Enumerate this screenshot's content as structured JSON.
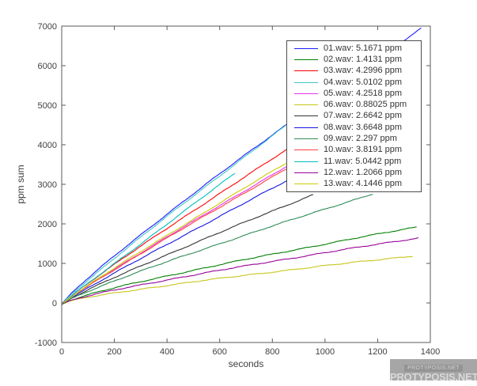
{
  "figure": {
    "background": "#ffffff",
    "axis_color": "#5a5a5a",
    "tick_label_color": "#404040"
  },
  "chart_data": {
    "type": "line",
    "title": "",
    "xlabel": "seconds",
    "ylabel": "ppm sum",
    "xlim": [
      0,
      1400
    ],
    "ylim": [
      -1000,
      7000
    ],
    "xticks": [
      0,
      200,
      400,
      600,
      800,
      1000,
      1200,
      1400
    ],
    "yticks": [
      -1000,
      0,
      1000,
      2000,
      3000,
      4000,
      5000,
      6000,
      7000
    ],
    "grid": false,
    "legend": {
      "position": "upper-right-inside",
      "border_color": "#4d4d4d",
      "text_color": "#333333"
    },
    "description": "Cumulative ppm sum over time for 13 wav recordings; each curve starts near 0 ppm (brief small dip) and rises nearly linearly to end_ppm_sum at duration_s. Legend value is the mean ppm rate per file.",
    "series": [
      {
        "label": "01.wav: 5.1671 ppm",
        "file": "01.wav",
        "rate_ppm_per_s": 5.1671,
        "color": "#1a1aff",
        "duration_s": 1365,
        "end_ppm_sum": 6950,
        "shape_exp": 0.92
      },
      {
        "label": "02.wav: 1.4131 ppm",
        "file": "02.wav",
        "rate_ppm_per_s": 1.4131,
        "color": "#007f00",
        "duration_s": 1348,
        "end_ppm_sum": 1920,
        "shape_exp": 0.85
      },
      {
        "label": "03.wav: 4.2996 ppm",
        "file": "03.wav",
        "rate_ppm_per_s": 4.2996,
        "color": "#ff0000",
        "duration_s": 858,
        "end_ppm_sum": 3890,
        "shape_exp": 0.95
      },
      {
        "label": "04.wav: 5.0102 ppm",
        "file": "04.wav",
        "rate_ppm_per_s": 5.0102,
        "color": "#3fc6c6",
        "duration_s": 855,
        "end_ppm_sum": 4500,
        "shape_exp": 0.95
      },
      {
        "label": "05.wav: 4.2518 ppm",
        "file": "05.wav",
        "rate_ppm_per_s": 4.2518,
        "color": "#e833e8",
        "duration_s": 858,
        "end_ppm_sum": 3470,
        "shape_exp": 0.96
      },
      {
        "label": "06.wav: 0.88025 ppm",
        "file": "06.wav",
        "rate_ppm_per_s": 0.88025,
        "color": "#c6c61a",
        "duration_s": 1333,
        "end_ppm_sum": 1190,
        "shape_exp": 0.82
      },
      {
        "label": "07.wav: 2.6642 ppm",
        "file": "07.wav",
        "rate_ppm_per_s": 2.6642,
        "color": "#333333",
        "duration_s": 955,
        "end_ppm_sum": 2740,
        "shape_exp": 0.93
      },
      {
        "label": "08.wav: 3.6648 ppm",
        "file": "08.wav",
        "rate_ppm_per_s": 3.6648,
        "color": "#1414e0",
        "duration_s": 855,
        "end_ppm_sum": 3090,
        "shape_exp": 0.97
      },
      {
        "label": "09.wav: 2.297 ppm",
        "file": "09.wav",
        "rate_ppm_per_s": 2.297,
        "color": "#2e8b57",
        "duration_s": 1182,
        "end_ppm_sum": 2760,
        "shape_exp": 0.9
      },
      {
        "label": "10.wav: 3.8191 ppm",
        "file": "10.wav",
        "rate_ppm_per_s": 3.8191,
        "color": "#ff4040",
        "duration_s": 858,
        "end_ppm_sum": 3410,
        "shape_exp": 0.96
      },
      {
        "label": "11.wav: 5.0442 ppm",
        "file": "11.wav",
        "rate_ppm_per_s": 5.0442,
        "color": "#00bfbf",
        "duration_s": 658,
        "end_ppm_sum": 3280,
        "shape_exp": 1.0
      },
      {
        "label": "12.wav: 1.2066 ppm",
        "file": "12.wav",
        "rate_ppm_per_s": 1.2066,
        "color": "#990099",
        "duration_s": 1355,
        "end_ppm_sum": 1645,
        "shape_exp": 0.85
      },
      {
        "label": "13.wav: 4.1446 ppm",
        "file": "13.wav",
        "rate_ppm_per_s": 4.1446,
        "color": "#cccc00",
        "duration_s": 858,
        "end_ppm_sum": 3560,
        "shape_exp": 0.96
      }
    ]
  },
  "watermark": {
    "small_text": "PROTYPOSIS.NET",
    "large_text": "PROTYPOSIS.NET"
  }
}
